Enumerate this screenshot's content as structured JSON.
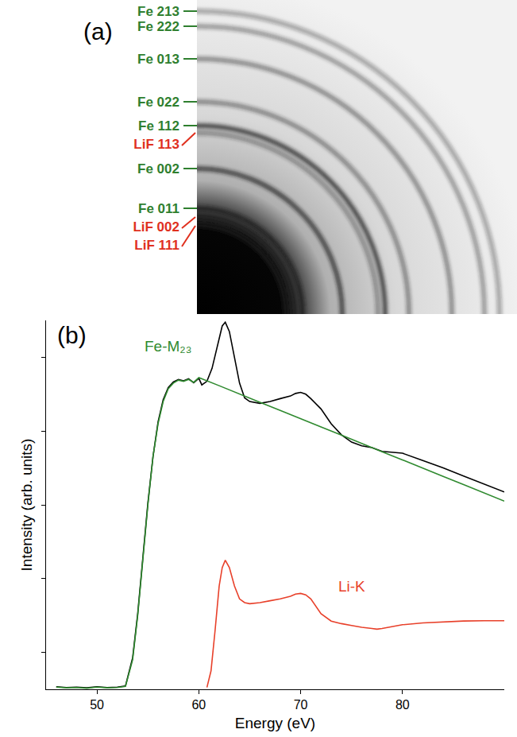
{
  "diffraction": {
    "panel_label": "(a)",
    "rings": [
      {
        "label": "Fe 213",
        "color": "#2f7f2f"
      },
      {
        "label": "Fe 222",
        "color": "#2f7f2f"
      },
      {
        "label": "Fe 013",
        "color": "#2f7f2f"
      },
      {
        "label": "Fe 022",
        "color": "#2f7f2f"
      },
      {
        "label": "Fe 112",
        "color": "#2f7f2f"
      },
      {
        "label": "LiF 113",
        "color": "#e0301e"
      },
      {
        "label": "Fe 002",
        "color": "#2f7f2f"
      },
      {
        "label": "Fe 011",
        "color": "#2f7f2f"
      },
      {
        "label": "LiF 002",
        "color": "#e0301e"
      },
      {
        "label": "LiF 111",
        "color": "#e0301e"
      }
    ]
  },
  "chart_data": {
    "type": "line",
    "panel_label": "(b)",
    "x_label": "Energy (eV)",
    "y_label": "Intensity (arb. units)",
    "xlim": [
      45,
      90
    ],
    "xticks": [
      50,
      60,
      70,
      80
    ],
    "ylim": [
      0,
      100
    ],
    "yticks": [
      10,
      30,
      50,
      70,
      90
    ],
    "tick_labels": "x",
    "grid": false,
    "series": [
      {
        "color": "#000000",
        "x": [
          46,
          47,
          48,
          49,
          50,
          51,
          52,
          52.8,
          53.5,
          54,
          54.5,
          55,
          55.5,
          56,
          56.5,
          57,
          57.5,
          58,
          58.5,
          59,
          59.5,
          60,
          60.3,
          60.8,
          61.3,
          61.8,
          62.3,
          62.6,
          63,
          63.5,
          64,
          64.5,
          65,
          66,
          67,
          68,
          69,
          69.5,
          70,
          70.5,
          71,
          72,
          73,
          74,
          75,
          76,
          77,
          78,
          80,
          82,
          84,
          86,
          88,
          90
        ],
        "values": [
          0.7,
          0.5,
          0.6,
          0.4,
          0.7,
          0.5,
          0.6,
          0.9,
          8.5,
          20.5,
          35.5,
          50.5,
          63,
          72.5,
          78.5,
          81.8,
          83.3,
          84,
          83.6,
          84.2,
          83.1,
          84.3,
          82.5,
          83.5,
          87,
          93,
          98.5,
          99.5,
          97,
          90,
          83,
          79,
          78,
          77.5,
          78,
          78.8,
          79.5,
          80.2,
          80.5,
          80,
          78.8,
          76,
          72,
          69,
          67,
          66,
          65.5,
          64.5,
          64,
          62,
          60,
          57.8,
          55.6,
          53.5
        ]
      },
      {
        "name": "Fe-M₂₃",
        "color": "#2f8a2f",
        "label_at": [
          57,
          93
        ],
        "x": [
          46,
          47,
          48,
          49,
          50,
          51,
          52,
          52.8,
          53.5,
          54,
          54.5,
          55,
          55.5,
          56,
          56.5,
          57,
          57.5,
          58,
          58.5,
          59,
          59.5,
          60,
          62,
          64,
          66,
          68,
          70,
          72,
          74,
          76,
          78,
          80,
          82,
          84,
          86,
          88,
          90
        ],
        "values": [
          0.6,
          0.4,
          0.5,
          0.3,
          0.6,
          0.4,
          0.5,
          0.8,
          8,
          20,
          35,
          50,
          63,
          72,
          78,
          81.5,
          83,
          83.8,
          83.5,
          84,
          83.2,
          84.5,
          82.3,
          80,
          77.8,
          75.6,
          73.3,
          71.1,
          68.9,
          66.6,
          64.4,
          62.2,
          59.9,
          57.7,
          55.5,
          53.2,
          51
        ]
      },
      {
        "name": "Li-K",
        "color": "#e8402a",
        "label_at": [
          75,
          28
        ],
        "x": [
          60.8,
          61.2,
          61.6,
          62,
          62.3,
          62.6,
          63,
          63.5,
          64,
          64.5,
          65,
          66,
          67,
          68,
          69,
          69.5,
          70,
          70.5,
          71,
          71.5,
          72,
          73,
          74,
          75,
          76,
          77,
          77.5,
          78,
          79,
          80,
          82,
          84,
          86,
          88,
          90
        ],
        "values": [
          0.5,
          5,
          16,
          28,
          33,
          35,
          33,
          28,
          24.5,
          23.5,
          23.2,
          23.5,
          24,
          24.5,
          25.2,
          25.8,
          26,
          25.6,
          24.5,
          22.5,
          20.5,
          18.5,
          17.8,
          17.3,
          16.8,
          16.5,
          16.3,
          16.5,
          17,
          17.5,
          18,
          18.3,
          18.5,
          18.6,
          18.6
        ]
      }
    ]
  }
}
